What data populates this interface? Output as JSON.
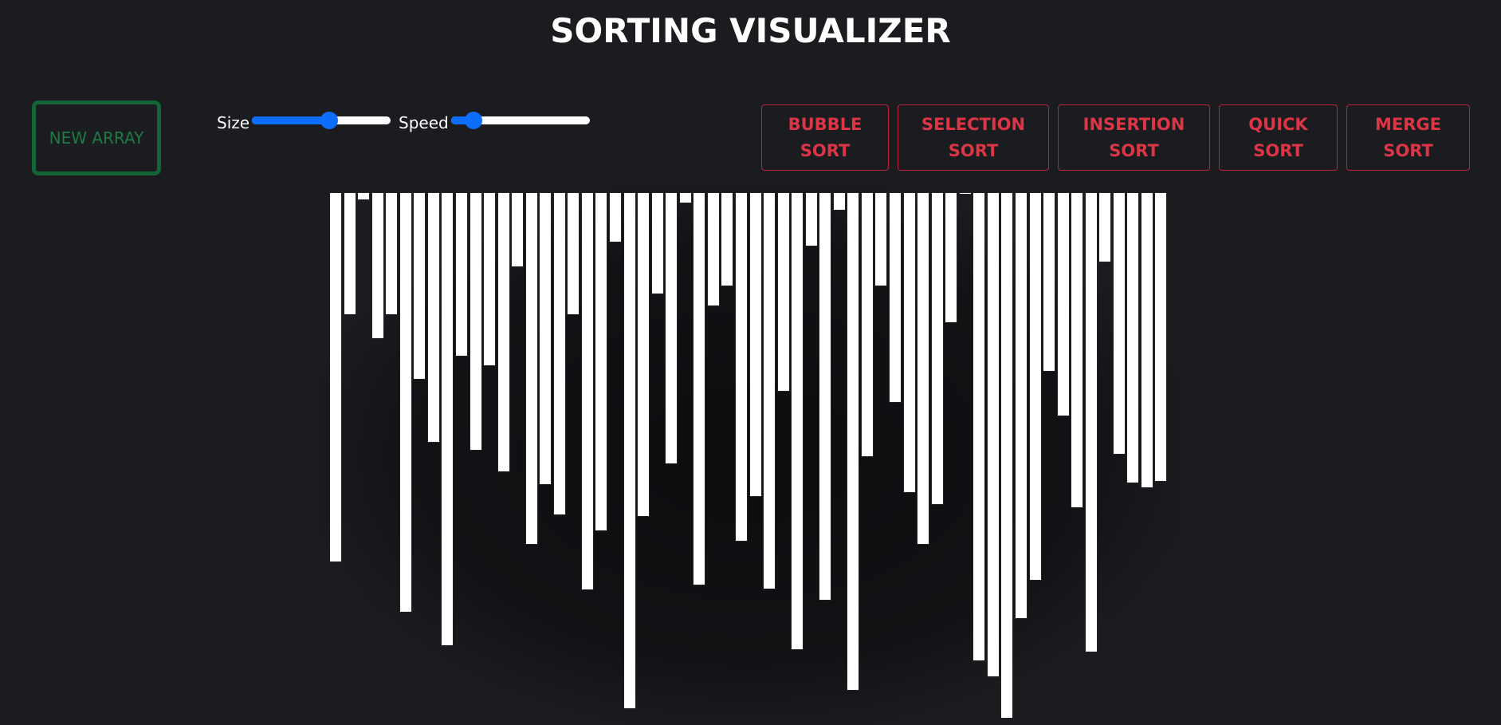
{
  "header": {
    "title": "SORTING VISUALIZER"
  },
  "controls": {
    "new_array_label": "NEW ARRAY",
    "size_label": "Size",
    "speed_label": "Speed",
    "size_value_fraction": 0.56,
    "speed_value_fraction": 0.16
  },
  "algorithms": [
    {
      "label": "BUBBLE\nSORT"
    },
    {
      "label": "SELECTION\nSORT"
    },
    {
      "label": "INSERTION\nSORT"
    },
    {
      "label": "QUICK\nSORT"
    },
    {
      "label": "MERGE\nSORT"
    }
  ],
  "colors": {
    "background": "#1a1c20",
    "new_array": "#136436",
    "algo_button": "#dc3545",
    "slider_accent": "#0d6efd",
    "bar": "#ffffff"
  },
  "array_values": [
    473,
    157,
    10,
    188,
    157,
    537,
    240,
    320,
    580,
    210,
    330,
    222,
    358,
    96,
    451,
    374,
    413,
    157,
    509,
    433,
    64,
    661,
    415,
    131,
    348,
    14,
    503,
    146,
    120,
    447,
    390,
    508,
    255,
    585,
    69,
    522,
    23,
    637,
    339,
    120,
    269,
    384,
    451,
    400,
    167,
    2,
    600,
    620,
    673,
    546,
    497,
    229,
    287,
    404,
    588,
    90,
    335,
    372,
    378,
    370
  ],
  "array_max": 673
}
